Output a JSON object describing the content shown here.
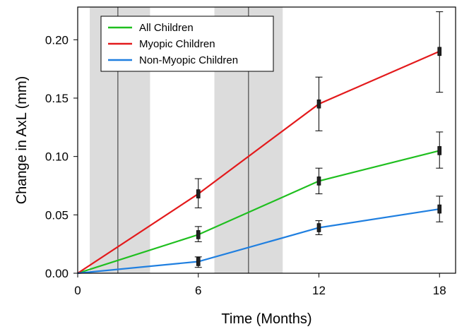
{
  "chart_data": {
    "type": "line",
    "title": "",
    "xlabel": "Time (Months)",
    "ylabel": "Change in AxL (mm)",
    "xlim": [
      0,
      18.8
    ],
    "ylim": [
      0,
      0.228
    ],
    "x_ticks": [
      0,
      6,
      12,
      18
    ],
    "x_tick_labels": [
      "0",
      "6",
      "12",
      "18"
    ],
    "y_ticks": [
      0,
      0.05,
      0.1,
      0.15,
      0.2
    ],
    "y_tick_labels": [
      "0.00",
      "0.05",
      "0.10",
      "0.15",
      "0.20"
    ],
    "grid": false,
    "legend_position": "top-left",
    "shaded_periods": [
      {
        "start": 0.6,
        "end": 3.6,
        "marker": 2.0
      },
      {
        "start": 6.8,
        "end": 10.2,
        "marker": 8.5
      }
    ],
    "series": [
      {
        "name": "All Children",
        "color": "#1fbf1f",
        "x": [
          0,
          6,
          12,
          18
        ],
        "values": [
          0.0,
          0.033,
          0.079,
          0.105
        ],
        "error_low": [
          null,
          0.027,
          0.068,
          0.09
        ],
        "error_high": [
          null,
          0.04,
          0.09,
          0.121
        ]
      },
      {
        "name": "Myopic Children",
        "color": "#e31a1c",
        "x": [
          0,
          6,
          12,
          18
        ],
        "values": [
          0.0,
          0.068,
          0.145,
          0.19
        ],
        "error_low": [
          null,
          0.056,
          0.122,
          0.155
        ],
        "error_high": [
          null,
          0.081,
          0.168,
          0.224
        ]
      },
      {
        "name": "Non-Myopic Children",
        "color": "#1f7fe0",
        "x": [
          0,
          6,
          12,
          18
        ],
        "values": [
          0.0,
          0.01,
          0.039,
          0.055
        ],
        "error_low": [
          null,
          0.005,
          0.033,
          0.044
        ],
        "error_high": [
          null,
          0.014,
          0.045,
          0.066
        ]
      }
    ]
  }
}
